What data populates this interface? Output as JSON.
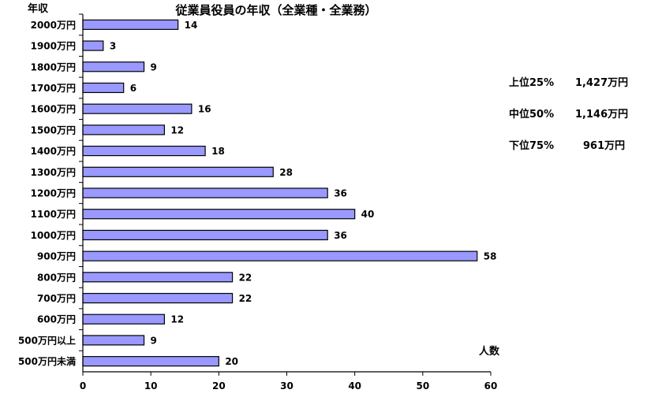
{
  "chart_data": {
    "type": "bar",
    "orientation": "horizontal",
    "title": "従業員役員の年収（全業種・全業務）",
    "ylabel": "年収",
    "xlabel": "人数",
    "categories": [
      "2000万円",
      "1900万円",
      "1800万円",
      "1700万円",
      "1600万円",
      "1500万円",
      "1400万円",
      "1300万円",
      "1200万円",
      "1100万円",
      "1000万円",
      "900万円",
      "800万円",
      "700万円",
      "600万円",
      "500万円以上",
      "500万円未満"
    ],
    "values": [
      14,
      3,
      9,
      6,
      16,
      12,
      18,
      28,
      36,
      40,
      36,
      58,
      22,
      22,
      12,
      9,
      20
    ],
    "xlim": [
      0,
      60
    ],
    "xticks": [
      "0",
      "10",
      "20",
      "30",
      "40",
      "50",
      "60"
    ],
    "grid": false,
    "bar_color": "#9999ff"
  },
  "stats": [
    {
      "label": "上位25%",
      "value": "1,427万円"
    },
    {
      "label": "中位50%",
      "value": "1,146万円"
    },
    {
      "label": "下位75%",
      "value": "961万円"
    }
  ]
}
